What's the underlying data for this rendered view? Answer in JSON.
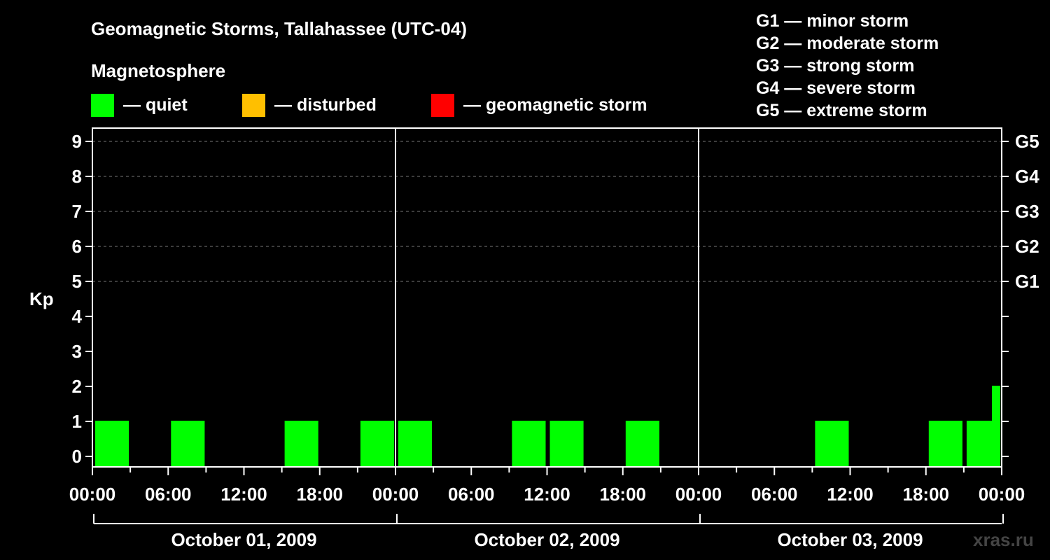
{
  "header": {
    "title": "Geomagnetic Storms, Tallahassee (UTC-04)",
    "subtitle": "Magnetosphere"
  },
  "legend": {
    "items": [
      {
        "label": "— quiet",
        "color": "#00ff00"
      },
      {
        "label": "— disturbed",
        "color": "#ffbf00"
      },
      {
        "label": "— geomagnetic storm",
        "color": "#ff0000"
      }
    ],
    "g_scale": [
      "G1 — minor storm",
      "G2 — moderate storm",
      "G3 — strong storm",
      "G4 — severe storm",
      "G5 — extreme storm"
    ]
  },
  "watermark": "xras.ru",
  "chart_data": {
    "type": "bar",
    "title": "Geomagnetic Storms, Tallahassee (UTC-04)",
    "ylabel": "Kp",
    "ylim": [
      0,
      9
    ],
    "yticks": [
      0,
      1,
      2,
      3,
      4,
      5,
      6,
      7,
      8,
      9
    ],
    "right_ticks": [
      {
        "kp": 5,
        "label": "G1"
      },
      {
        "kp": 6,
        "label": "G2"
      },
      {
        "kp": 7,
        "label": "G3"
      },
      {
        "kp": 8,
        "label": "G4"
      },
      {
        "kp": 9,
        "label": "G5"
      }
    ],
    "grid": "dashed horizontal at Kp 5-9",
    "x_ticks": [
      "00:00",
      "06:00",
      "12:00",
      "18:00",
      "00:00",
      "06:00",
      "12:00",
      "18:00",
      "00:00",
      "06:00",
      "12:00",
      "18:00",
      "00:00"
    ],
    "days": [
      "October 01, 2009",
      "October 02, 2009",
      "October 03, 2009"
    ],
    "bars": [
      {
        "day": "October 01, 2009",
        "hour": 0,
        "kp": 1
      },
      {
        "day": "October 01, 2009",
        "hour": 6,
        "kp": 1
      },
      {
        "day": "October 01, 2009",
        "hour": 15,
        "kp": 1
      },
      {
        "day": "October 01, 2009",
        "hour": 21,
        "kp": 1
      },
      {
        "day": "October 02, 2009",
        "hour": 0,
        "kp": 1
      },
      {
        "day": "October 02, 2009",
        "hour": 9,
        "kp": 1
      },
      {
        "day": "October 02, 2009",
        "hour": 12,
        "kp": 1
      },
      {
        "day": "October 02, 2009",
        "hour": 18,
        "kp": 1
      },
      {
        "day": "October 03, 2009",
        "hour": 9,
        "kp": 1
      },
      {
        "day": "October 03, 2009",
        "hour": 18,
        "kp": 1
      },
      {
        "day": "October 03, 2009",
        "hour": 21,
        "kp": 1
      },
      {
        "day": "October 03, 2009",
        "hour": 23,
        "kp": 2
      }
    ]
  }
}
